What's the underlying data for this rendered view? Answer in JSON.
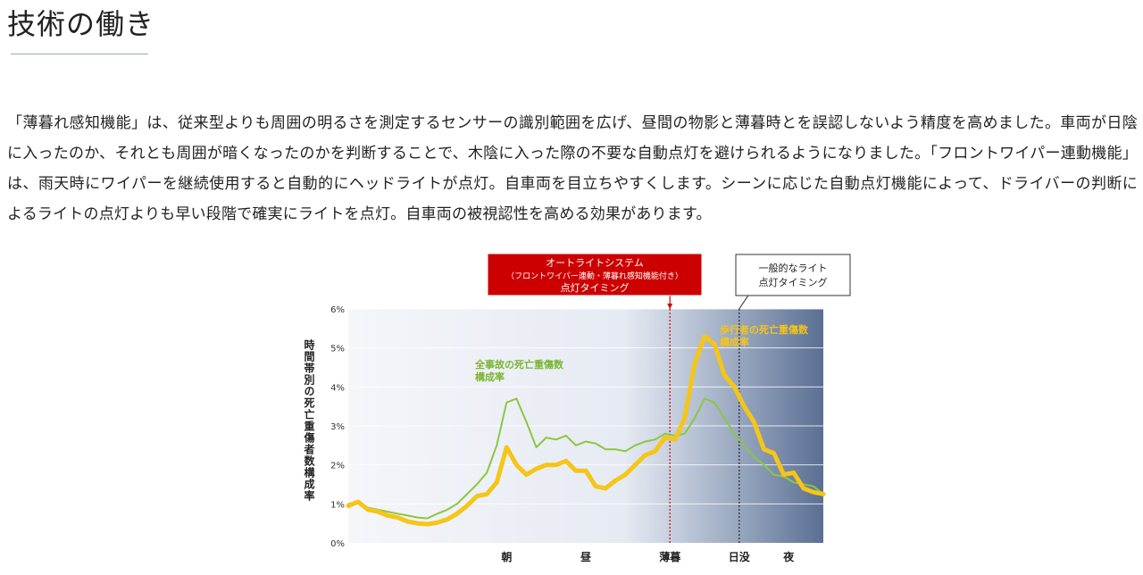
{
  "page": {
    "title": "技術の働き",
    "paragraph": "「薄暮れ感知機能」は、従来型よりも周囲の明るさを測定するセンサーの識別範囲を広げ、昼間の物影と薄暮時とを誤認しないよう精度を高めました。車両が日陰に入ったのか、それとも周囲が暗くなったのかを判断することで、木陰に入った際の不要な自動点灯を避けられるようになりました。「フロントワイパー連動機能」は、雨天時にワイパーを継続使用すると自動的にヘッドライトが点灯。自車両を目立ちやすくします。シーンに応じた自動点灯機能によって、ドライバーの判断によるライトの点灯よりも早い段階で確実にライトを点灯。自車両の被視認性を高める効果があります。"
  },
  "chart_data": {
    "type": "line",
    "ylabel": "時間帯別の死亡重傷者数構成率",
    "y_ticks": [
      "0%",
      "1%",
      "2%",
      "3%",
      "4%",
      "5%",
      "6%"
    ],
    "ylim": [
      0,
      6
    ],
    "xlim": [
      0,
      48
    ],
    "x_ticks": [
      {
        "x": 16,
        "label": "朝"
      },
      {
        "x": 24,
        "label": "昼"
      },
      {
        "x": 32.5,
        "label": "薄暮"
      },
      {
        "x": 39.5,
        "label": "日没"
      },
      {
        "x": 44.5,
        "label": "夜"
      }
    ],
    "annotations": {
      "autolight": {
        "x": 32.5,
        "line1": "オートライトシステム",
        "line2": "（フロントワイパー連動・薄暮れ感知機能付き）",
        "line3": "点灯タイミング",
        "color": "#cc0000"
      },
      "general": {
        "x": 39.5,
        "line1": "一般的なライト",
        "line2": "点灯タイミング"
      }
    },
    "series": [
      {
        "name": "全事故の死亡重傷数構成率",
        "label_line1": "全事故の死亡重傷数",
        "label_line2": "構成率",
        "color": "#8dc63f",
        "x": [
          0,
          1,
          2,
          3,
          4,
          5,
          6,
          7,
          8,
          9,
          10,
          11,
          12,
          13,
          14,
          15,
          16,
          17,
          18,
          19,
          20,
          21,
          22,
          23,
          24,
          25,
          26,
          27,
          28,
          29,
          30,
          31,
          32,
          33,
          34,
          35,
          36,
          37,
          38,
          39,
          40,
          41,
          42,
          43,
          44,
          45,
          46,
          47,
          48
        ],
        "values": [
          1.0,
          1.05,
          0.9,
          0.85,
          0.8,
          0.75,
          0.7,
          0.65,
          0.63,
          0.75,
          0.85,
          1.0,
          1.25,
          1.5,
          1.8,
          2.5,
          3.6,
          3.7,
          3.1,
          2.45,
          2.7,
          2.65,
          2.75,
          2.5,
          2.6,
          2.55,
          2.4,
          2.4,
          2.35,
          2.5,
          2.6,
          2.65,
          2.8,
          2.75,
          2.8,
          3.2,
          3.7,
          3.6,
          3.2,
          2.8,
          2.5,
          2.2,
          2.0,
          1.75,
          1.7,
          1.55,
          1.5,
          1.45,
          1.25
        ]
      },
      {
        "name": "歩行者の死亡重傷数構成率",
        "label_line1": "歩行者の死亡重傷数",
        "label_line2": "構成率",
        "color": "#f5c518",
        "x": [
          0,
          1,
          2,
          3,
          4,
          5,
          6,
          7,
          8,
          9,
          10,
          11,
          12,
          13,
          14,
          15,
          16,
          17,
          18,
          19,
          20,
          21,
          22,
          23,
          24,
          25,
          26,
          27,
          28,
          29,
          30,
          31,
          32,
          33,
          34,
          35,
          36,
          37,
          38,
          39,
          40,
          41,
          42,
          43,
          44,
          45,
          46,
          47,
          48
        ],
        "values": [
          0.95,
          1.05,
          0.85,
          0.8,
          0.7,
          0.65,
          0.55,
          0.5,
          0.48,
          0.52,
          0.6,
          0.75,
          0.95,
          1.2,
          1.25,
          1.55,
          2.45,
          2.0,
          1.75,
          1.9,
          2.0,
          2.0,
          2.1,
          1.85,
          1.85,
          1.45,
          1.4,
          1.6,
          1.75,
          2.0,
          2.25,
          2.35,
          2.7,
          2.65,
          3.2,
          4.6,
          5.3,
          5.1,
          4.3,
          4.0,
          3.5,
          3.1,
          2.4,
          2.3,
          1.75,
          1.8,
          1.4,
          1.3,
          1.25
        ]
      }
    ]
  }
}
